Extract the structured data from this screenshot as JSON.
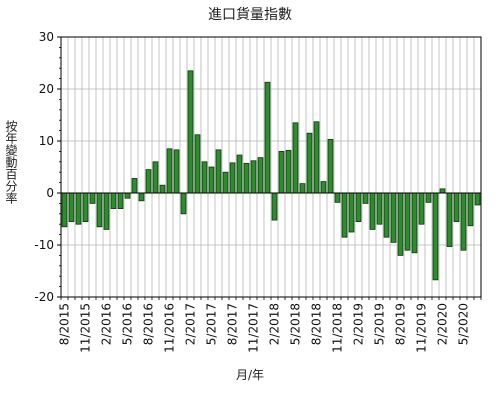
{
  "chart_data": {
    "type": "bar",
    "title": "進口貨量指數",
    "ylabel": "按年變動百分率",
    "xlabel": "月/年",
    "ylim": [
      -20,
      30
    ],
    "y_ticks": [
      "30",
      "20",
      "10",
      "0",
      "-10",
      "-20"
    ],
    "x_tick_labels": [
      "8/2015",
      "11/2015",
      "2/2016",
      "5/2016",
      "8/2016",
      "11/2016",
      "2/2017",
      "5/2017",
      "8/2017",
      "11/2017",
      "2/2018",
      "5/2018",
      "8/2018",
      "11/2018",
      "2/2019",
      "5/2019",
      "8/2019",
      "11/2019",
      "2/2020",
      "5/2020"
    ],
    "bar_color": "#2e8b2e",
    "bar_edge_color": "#0b3a0b",
    "grid": true,
    "series": [
      {
        "values": [
          -6.5,
          -5.5,
          -6.0,
          -5.5,
          -2.0,
          -6.5,
          -7.0,
          -3.0,
          -3.0,
          -1.0,
          2.8,
          -1.5,
          4.5,
          6.0,
          1.5,
          8.5,
          8.3,
          -4.0,
          23.5,
          11.2,
          6.0,
          5.0,
          8.3,
          4.0,
          5.8,
          7.3,
          5.7,
          6.2,
          6.8,
          21.3,
          -5.2,
          8.0,
          8.2,
          13.5,
          1.8,
          11.5,
          13.7,
          2.2,
          10.3,
          -1.8,
          -8.5,
          -7.5,
          -5.5,
          -2.0,
          -7.0,
          -6.0,
          -8.5,
          -9.5,
          -12.0,
          -11.0,
          -11.5,
          -6.0,
          -1.8,
          -16.7,
          0.8,
          -10.3,
          -5.5,
          -11.0,
          -6.3,
          -2.3
        ]
      }
    ]
  }
}
